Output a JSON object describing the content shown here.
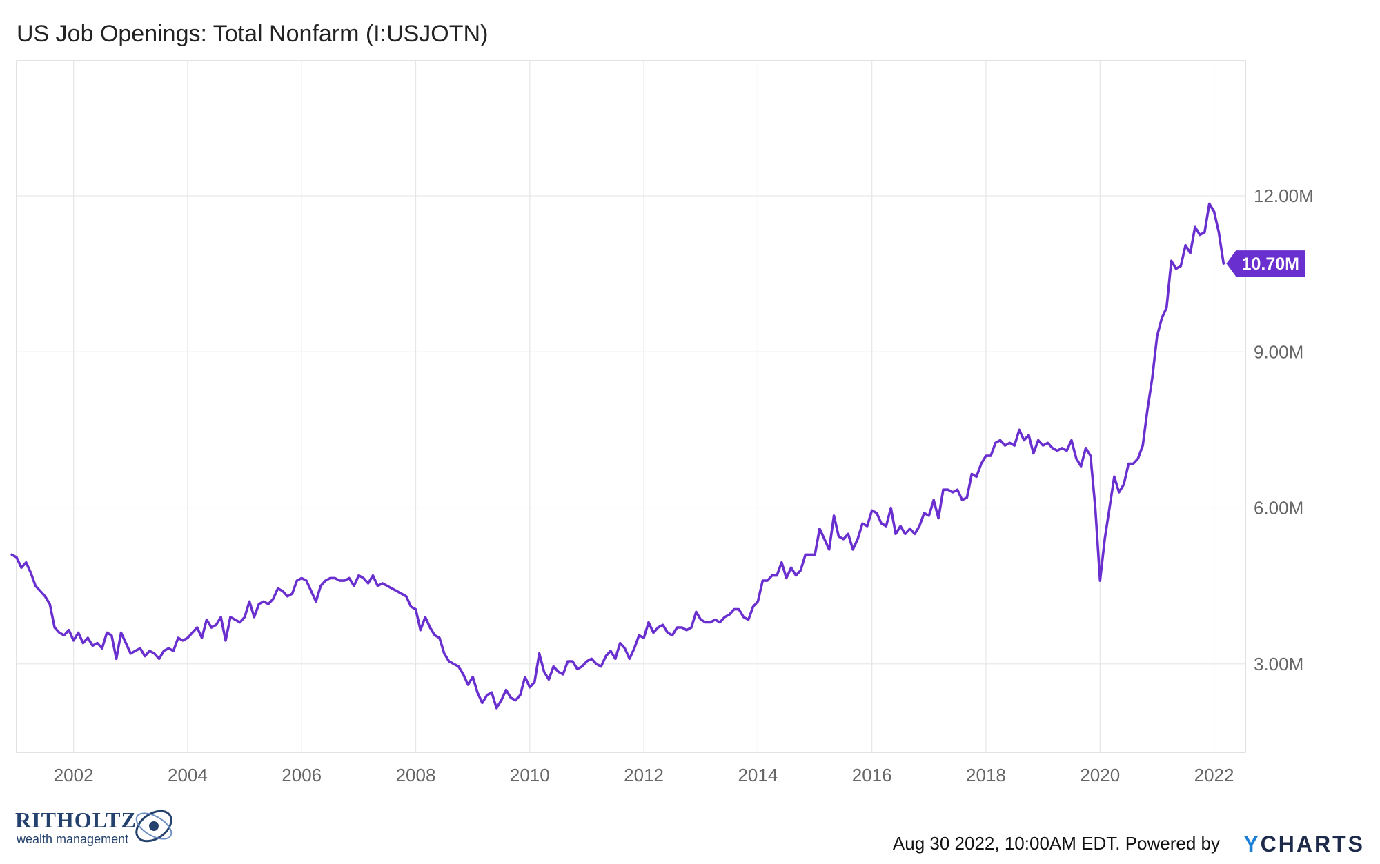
{
  "title": "US Job Openings: Total Nonfarm (I:USJOTN)",
  "footer": {
    "stamp": "Aug 30 2022, 10:00AM EDT. Powered by",
    "brand_y": "Y",
    "brand_rest": "CHARTS"
  },
  "logo": {
    "name": "RITHOLTZ",
    "sub": "wealth management"
  },
  "colors": {
    "line": "#6a2fcf",
    "grid": "#e6e6e6",
    "axis_text": "#666666",
    "badge_text": "#ffffff"
  },
  "chart_data": {
    "type": "line",
    "title": "US Job Openings: Total Nonfarm (I:USJOTN)",
    "xlabel": "",
    "ylabel": "",
    "grid": true,
    "legend": "none",
    "xlim": [
      2001.0,
      2022.55
    ],
    "ylim": [
      1.3,
      14.6
    ],
    "x_ticks": [
      2002,
      2004,
      2006,
      2008,
      2010,
      2012,
      2014,
      2016,
      2018,
      2020,
      2022
    ],
    "x_tick_labels": [
      "2002",
      "2004",
      "2006",
      "2008",
      "2010",
      "2012",
      "2014",
      "2016",
      "2018",
      "2020",
      "2022"
    ],
    "y_ticks": [
      3.0,
      6.0,
      9.0,
      12.0
    ],
    "y_tick_labels": [
      "3.00M",
      "6.00M",
      "9.00M",
      "12.00M"
    ],
    "last_value": 10.7,
    "last_value_label": "10.70M",
    "series": [
      {
        "name": "US Job Openings: Total Nonfarm",
        "start": "2000-12",
        "values_millions": [
          5.1,
          5.05,
          4.85,
          4.95,
          4.75,
          4.5,
          4.4,
          4.3,
          4.15,
          3.7,
          3.6,
          3.55,
          3.65,
          3.45,
          3.6,
          3.4,
          3.5,
          3.35,
          3.4,
          3.3,
          3.6,
          3.55,
          3.1,
          3.6,
          3.4,
          3.2,
          3.25,
          3.3,
          3.15,
          3.25,
          3.2,
          3.1,
          3.25,
          3.3,
          3.25,
          3.5,
          3.45,
          3.5,
          3.6,
          3.7,
          3.5,
          3.85,
          3.7,
          3.75,
          3.9,
          3.45,
          3.9,
          3.85,
          3.8,
          3.9,
          4.2,
          3.9,
          4.15,
          4.2,
          4.15,
          4.25,
          4.45,
          4.4,
          4.3,
          4.35,
          4.6,
          4.65,
          4.6,
          4.4,
          4.2,
          4.5,
          4.6,
          4.65,
          4.65,
          4.6,
          4.6,
          4.65,
          4.5,
          4.7,
          4.65,
          4.55,
          4.7,
          4.5,
          4.55,
          4.5,
          4.45,
          4.4,
          4.35,
          4.3,
          4.1,
          4.05,
          3.65,
          3.9,
          3.7,
          3.55,
          3.5,
          3.2,
          3.05,
          3.0,
          2.95,
          2.8,
          2.6,
          2.75,
          2.45,
          2.25,
          2.4,
          2.45,
          2.15,
          2.3,
          2.5,
          2.35,
          2.3,
          2.4,
          2.75,
          2.55,
          2.65,
          3.2,
          2.85,
          2.7,
          2.95,
          2.85,
          2.8,
          3.05,
          3.05,
          2.9,
          2.95,
          3.05,
          3.1,
          3.0,
          2.95,
          3.15,
          3.25,
          3.1,
          3.4,
          3.3,
          3.1,
          3.3,
          3.55,
          3.5,
          3.8,
          3.6,
          3.7,
          3.75,
          3.6,
          3.55,
          3.7,
          3.7,
          3.65,
          3.7,
          4.0,
          3.85,
          3.8,
          3.8,
          3.85,
          3.8,
          3.9,
          3.95,
          4.05,
          4.05,
          3.9,
          3.85,
          4.1,
          4.2,
          4.6,
          4.6,
          4.7,
          4.7,
          4.95,
          4.65,
          4.85,
          4.7,
          4.8,
          5.1,
          5.1,
          5.1,
          5.6,
          5.4,
          5.2,
          5.85,
          5.45,
          5.4,
          5.5,
          5.2,
          5.4,
          5.7,
          5.65,
          5.95,
          5.9,
          5.7,
          5.65,
          6.0,
          5.5,
          5.65,
          5.5,
          5.6,
          5.5,
          5.65,
          5.9,
          5.85,
          6.15,
          5.8,
          6.35,
          6.35,
          6.3,
          6.35,
          6.15,
          6.2,
          6.65,
          6.6,
          6.85,
          7.0,
          7.0,
          7.25,
          7.3,
          7.2,
          7.25,
          7.2,
          7.5,
          7.3,
          7.4,
          7.05,
          7.3,
          7.2,
          7.25,
          7.15,
          7.1,
          7.15,
          7.1,
          7.3,
          6.95,
          6.8,
          7.15,
          7.0,
          6.0,
          4.6,
          5.4,
          6.0,
          6.6,
          6.3,
          6.45,
          6.85,
          6.85,
          6.95,
          7.2,
          7.9,
          8.5,
          9.3,
          9.65,
          9.85,
          10.75,
          10.6,
          10.65,
          11.05,
          10.9,
          11.4,
          11.25,
          11.3,
          11.85,
          11.7,
          11.3,
          10.7
        ]
      }
    ]
  }
}
